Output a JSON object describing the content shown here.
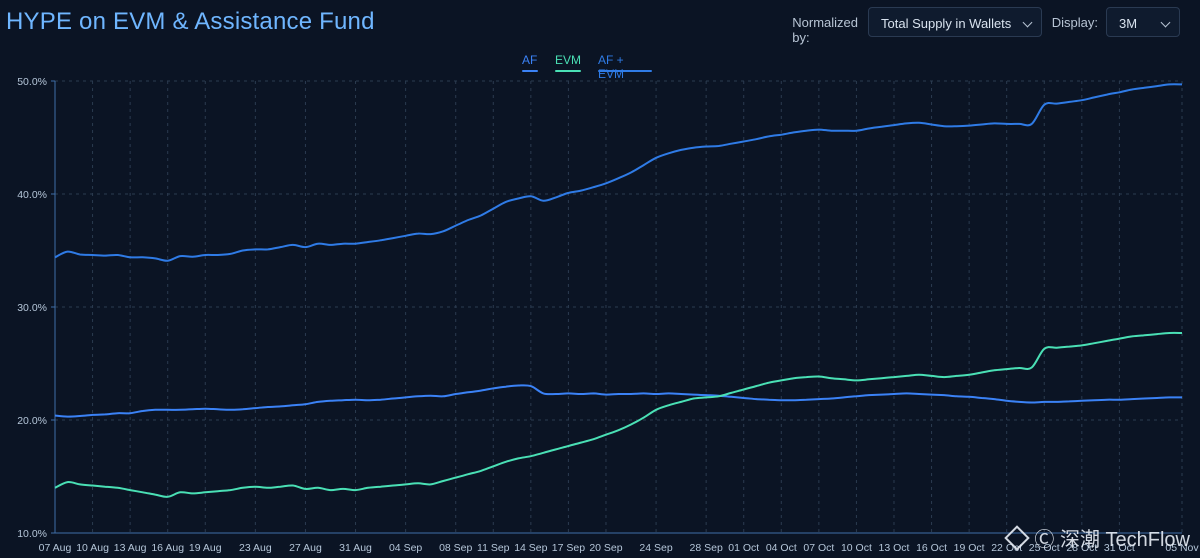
{
  "header": {
    "title": "HYPE on EVM & Assistance Fund"
  },
  "controls": {
    "normalized_label": "Normalized by:",
    "normalized_value": "Total Supply in Wallets",
    "display_label": "Display:",
    "display_value": "3M"
  },
  "watermark": "Ⓒ 深潮 TechFlow",
  "colors": {
    "af": "#3b82f6",
    "evm": "#4ae0b5",
    "af_evm": "#2f7be6",
    "grid": "#2b3b50",
    "axis": "#3f6ea8"
  },
  "chart_data": {
    "type": "line",
    "title": "HYPE on EVM & Assistance Fund",
    "ylim": [
      10,
      50
    ],
    "y_ticks": [
      10,
      20,
      30,
      40,
      50
    ],
    "y_tick_labels": [
      "10.0%",
      "20.0%",
      "30.0%",
      "40.0%",
      "50.0%"
    ],
    "x_tick_labels": [
      "07 Aug",
      "10 Aug",
      "13 Aug",
      "16 Aug",
      "19 Aug",
      "23 Aug",
      "27 Aug",
      "31 Aug",
      "04 Sep",
      "08 Sep",
      "11 Sep",
      "14 Sep",
      "17 Sep",
      "20 Sep",
      "24 Sep",
      "28 Sep",
      "01 Oct",
      "04 Oct",
      "07 Oct",
      "10 Oct",
      "13 Oct",
      "16 Oct",
      "19 Oct",
      "22 Oct",
      "25 Oct",
      "28 Oct",
      "31 Oct",
      "05 Nov"
    ],
    "x_tick_index": [
      0,
      3,
      6,
      9,
      12,
      16,
      20,
      24,
      28,
      32,
      35,
      38,
      41,
      44,
      48,
      52,
      55,
      58,
      61,
      64,
      67,
      70,
      73,
      76,
      79,
      82,
      85,
      90
    ],
    "series": [
      {
        "name": "AF",
        "key": "af",
        "values": [
          20.4,
          20.3,
          20.35,
          20.45,
          20.5,
          20.6,
          20.6,
          20.8,
          20.9,
          20.9,
          20.9,
          20.95,
          21.0,
          20.95,
          20.9,
          20.95,
          21.05,
          21.15,
          21.2,
          21.3,
          21.4,
          21.6,
          21.7,
          21.75,
          21.8,
          21.75,
          21.8,
          21.9,
          22.0,
          22.1,
          22.15,
          22.1,
          22.3,
          22.45,
          22.6,
          22.8,
          22.95,
          23.05,
          23.0,
          22.35,
          22.3,
          22.35,
          22.3,
          22.35,
          22.25,
          22.3,
          22.3,
          22.35,
          22.3,
          22.35,
          22.3,
          22.25,
          22.2,
          22.15,
          22.05,
          21.95,
          21.85,
          21.8,
          21.75,
          21.75,
          21.8,
          21.85,
          21.9,
          22.0,
          22.1,
          22.2,
          22.25,
          22.3,
          22.35,
          22.3,
          22.25,
          22.2,
          22.1,
          22.05,
          21.95,
          21.85,
          21.7,
          21.6,
          21.55,
          21.6,
          21.6,
          21.65,
          21.7,
          21.75,
          21.8,
          21.8,
          21.85,
          21.9,
          21.95,
          22.0,
          22.0
        ]
      },
      {
        "name": "EVM",
        "key": "evm",
        "values": [
          14.0,
          14.5,
          14.3,
          14.2,
          14.1,
          14.0,
          13.8,
          13.6,
          13.4,
          13.2,
          13.6,
          13.5,
          13.6,
          13.7,
          13.8,
          14.0,
          14.1,
          14.0,
          14.1,
          14.2,
          13.9,
          14.0,
          13.8,
          13.9,
          13.8,
          14.0,
          14.1,
          14.2,
          14.3,
          14.4,
          14.3,
          14.6,
          14.9,
          15.2,
          15.5,
          15.9,
          16.3,
          16.6,
          16.8,
          17.1,
          17.4,
          17.7,
          18.0,
          18.3,
          18.7,
          19.1,
          19.6,
          20.2,
          20.9,
          21.3,
          21.6,
          21.9,
          22.0,
          22.1,
          22.4,
          22.7,
          23.0,
          23.3,
          23.5,
          23.7,
          23.8,
          23.85,
          23.7,
          23.6,
          23.5,
          23.6,
          23.7,
          23.8,
          23.9,
          24.0,
          23.9,
          23.8,
          23.9,
          24.0,
          24.2,
          24.4,
          24.5,
          24.6,
          24.65,
          26.3,
          26.4,
          26.5,
          26.6,
          26.8,
          27.0,
          27.2,
          27.4,
          27.5,
          27.6,
          27.7,
          27.7
        ]
      },
      {
        "name": "AF + EVM",
        "key": "af_evm",
        "values": [
          34.4,
          34.9,
          34.65,
          34.6,
          34.55,
          34.6,
          34.4,
          34.4,
          34.3,
          34.1,
          34.5,
          34.45,
          34.6,
          34.6,
          34.7,
          35.0,
          35.1,
          35.1,
          35.3,
          35.5,
          35.3,
          35.6,
          35.5,
          35.6,
          35.6,
          35.75,
          35.9,
          36.1,
          36.3,
          36.5,
          36.45,
          36.7,
          37.2,
          37.7,
          38.1,
          38.7,
          39.3,
          39.6,
          39.8,
          39.4,
          39.7,
          40.1,
          40.3,
          40.6,
          40.95,
          41.4,
          41.9,
          42.55,
          43.2,
          43.6,
          43.9,
          44.1,
          44.2,
          44.25,
          44.45,
          44.65,
          44.85,
          45.1,
          45.25,
          45.45,
          45.6,
          45.7,
          45.6,
          45.6,
          45.6,
          45.8,
          45.95,
          46.1,
          46.25,
          46.3,
          46.15,
          46.0,
          46.0,
          46.05,
          46.15,
          46.25,
          46.2,
          46.2,
          46.2,
          47.9,
          48.0,
          48.15,
          48.3,
          48.55,
          48.8,
          49.0,
          49.25,
          49.4,
          49.55,
          49.7,
          49.7
        ]
      }
    ]
  }
}
